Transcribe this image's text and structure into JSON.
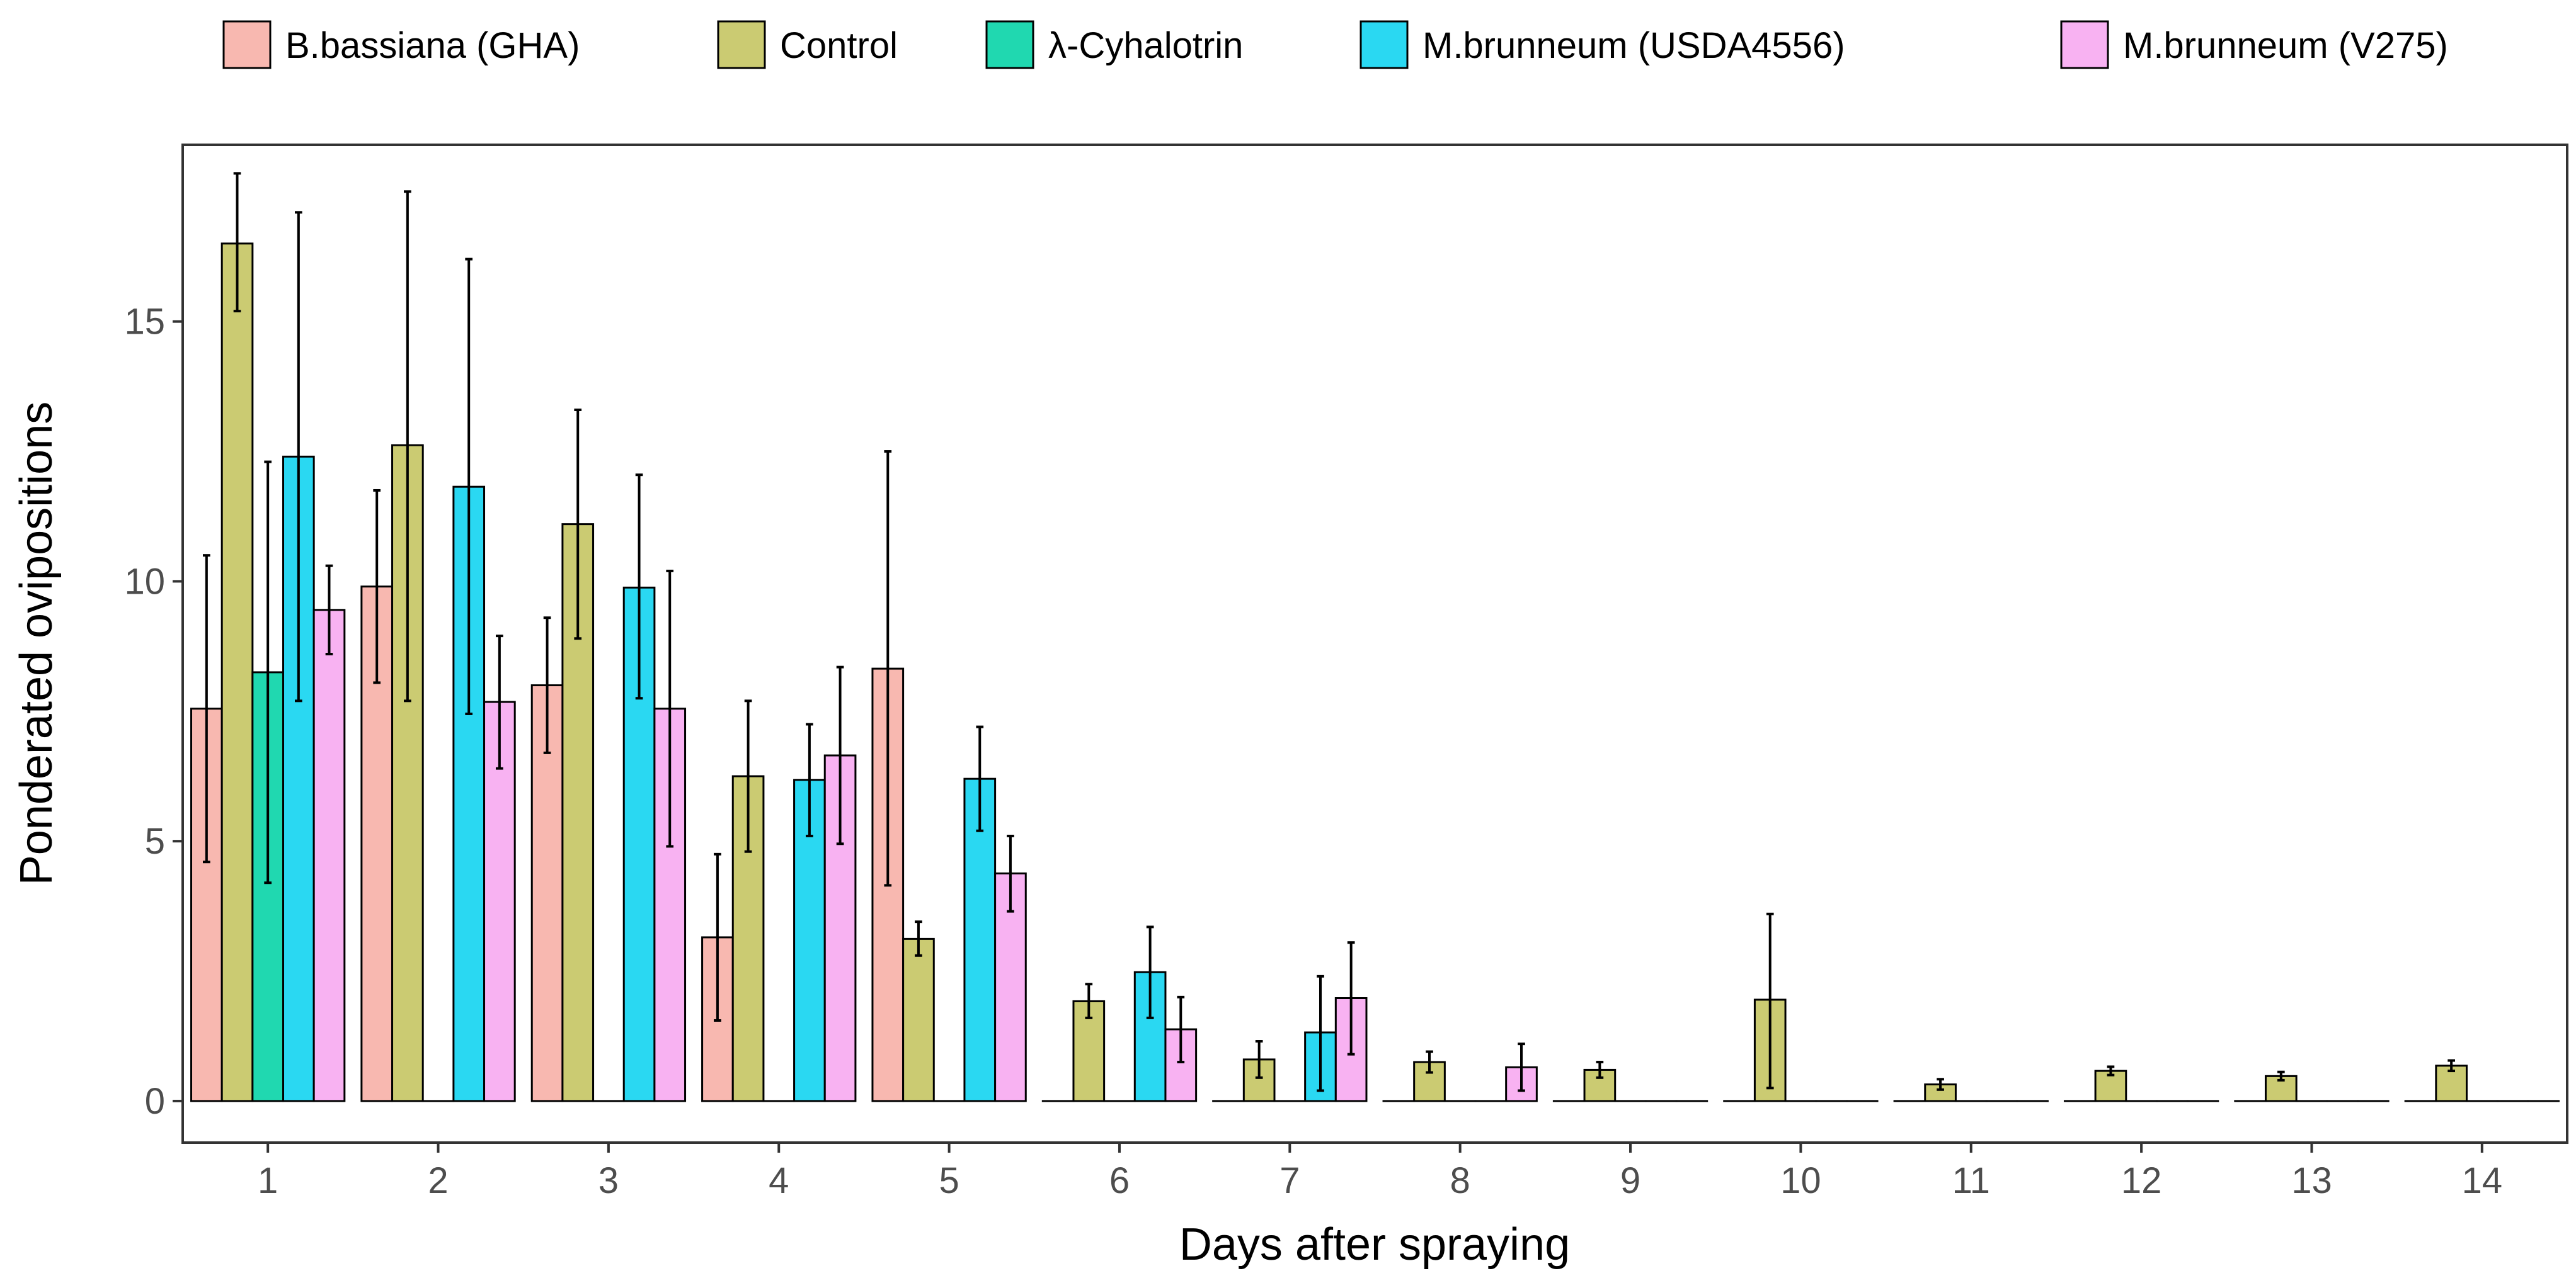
{
  "chart_data": {
    "type": "bar",
    "xlabel": "Days after spraying",
    "ylabel": "Ponderated ovipositions",
    "ylim": [
      -0.8,
      18.4
    ],
    "yticks": [
      0,
      5,
      10,
      15
    ],
    "categories": [
      "1",
      "2",
      "3",
      "4",
      "5",
      "6",
      "7",
      "8",
      "9",
      "10",
      "11",
      "12",
      "13",
      "14"
    ],
    "legend_position": "top",
    "legend": [
      {
        "label": "B.bassiana (GHA)",
        "color": "#F8B8B0"
      },
      {
        "label": "Control",
        "color": "#CBCB72"
      },
      {
        "label": "λ-Cyhalotrin",
        "color": "#20D8B0"
      },
      {
        "label": "M.brunneum (USDA4556)",
        "color": "#2AD8F2"
      },
      {
        "label": "M.brunneum (V275)",
        "color": "#F8B2F2"
      }
    ],
    "series": [
      {
        "name": "B.bassiana (GHA)",
        "color": "#F8B8B0",
        "values": [
          7.55,
          9.9,
          8.0,
          3.15,
          8.32,
          0,
          0,
          0,
          0,
          0,
          0,
          0,
          0,
          0
        ],
        "err_low": [
          4.6,
          8.05,
          6.7,
          1.55,
          4.15,
          0,
          0,
          0,
          0,
          0,
          0,
          0,
          0,
          0
        ],
        "err_high": [
          10.5,
          11.75,
          9.3,
          4.75,
          12.5,
          0,
          0,
          0,
          0,
          0,
          0,
          0,
          0,
          0
        ]
      },
      {
        "name": "Control",
        "color": "#CBCB72",
        "values": [
          16.5,
          12.62,
          11.1,
          6.25,
          3.12,
          1.92,
          0.8,
          0.75,
          0.6,
          1.95,
          0.32,
          0.58,
          0.48,
          0.68
        ],
        "err_low": [
          15.2,
          7.7,
          8.9,
          4.8,
          2.8,
          1.6,
          0.45,
          0.55,
          0.45,
          0.25,
          0.22,
          0.5,
          0.4,
          0.58
        ],
        "err_high": [
          17.85,
          17.5,
          13.3,
          7.7,
          3.45,
          2.25,
          1.15,
          0.95,
          0.75,
          3.6,
          0.42,
          0.66,
          0.56,
          0.78
        ]
      },
      {
        "name": "λ-Cyhalotrin",
        "color": "#20D8B0",
        "values": [
          8.25,
          0,
          0,
          0,
          0,
          0,
          0,
          0,
          0,
          0,
          0,
          0,
          0,
          0
        ],
        "err_low": [
          4.2,
          0,
          0,
          0,
          0,
          0,
          0,
          0,
          0,
          0,
          0,
          0,
          0,
          0
        ],
        "err_high": [
          12.3,
          0,
          0,
          0,
          0,
          0,
          0,
          0,
          0,
          0,
          0,
          0,
          0,
          0
        ]
      },
      {
        "name": "M.brunneum (USDA4556)",
        "color": "#2AD8F2",
        "values": [
          12.4,
          11.82,
          9.88,
          6.18,
          6.2,
          2.48,
          1.32,
          0,
          0,
          0,
          0,
          0,
          0,
          0
        ],
        "err_low": [
          7.7,
          7.45,
          7.75,
          5.1,
          5.2,
          1.6,
          0.2,
          0,
          0,
          0,
          0,
          0,
          0,
          0
        ],
        "err_high": [
          17.1,
          16.2,
          12.05,
          7.25,
          7.2,
          3.35,
          2.4,
          0,
          0,
          0,
          0,
          0,
          0,
          0
        ]
      },
      {
        "name": "M.brunneum (V275)",
        "color": "#F8B2F2",
        "values": [
          9.45,
          7.68,
          7.55,
          6.65,
          4.38,
          1.38,
          1.98,
          0.65,
          0,
          0,
          0,
          0,
          0,
          0
        ],
        "err_low": [
          8.6,
          6.4,
          4.9,
          4.95,
          3.65,
          0.75,
          0.9,
          0.2,
          0,
          0,
          0,
          0,
          0,
          0
        ],
        "err_high": [
          10.3,
          8.95,
          10.2,
          8.35,
          5.1,
          2.0,
          3.05,
          1.1,
          0,
          0,
          0,
          0,
          0,
          0
        ]
      }
    ]
  }
}
